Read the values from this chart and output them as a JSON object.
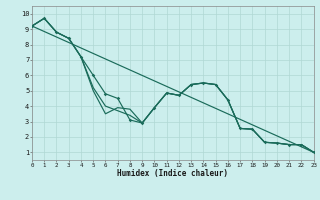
{
  "xlabel": "Humidex (Indice chaleur)",
  "xlim": [
    0,
    23
  ],
  "ylim": [
    0.5,
    10.5
  ],
  "xticks": [
    0,
    1,
    2,
    3,
    4,
    5,
    6,
    7,
    8,
    9,
    10,
    11,
    12,
    13,
    14,
    15,
    16,
    17,
    18,
    19,
    20,
    21,
    22,
    23
  ],
  "yticks": [
    1,
    2,
    3,
    4,
    5,
    6,
    7,
    8,
    9,
    10
  ],
  "bg_color": "#cceeed",
  "grid_color": "#b0d8d4",
  "line_color": "#1a6b5a",
  "series": [
    {
      "x": [
        0,
        1,
        2,
        3,
        4,
        5,
        6,
        7,
        8,
        9,
        10,
        11,
        12,
        13,
        14,
        15,
        16,
        17,
        18,
        19,
        20,
        21,
        22,
        23
      ],
      "y": [
        9.2,
        9.7,
        8.8,
        8.4,
        7.2,
        6.0,
        4.8,
        4.5,
        3.1,
        2.9,
        3.9,
        4.85,
        4.7,
        5.4,
        5.5,
        5.4,
        4.4,
        2.55,
        2.5,
        1.65,
        1.6,
        1.5,
        1.5,
        1.0
      ],
      "marker": true,
      "lw": 0.85
    },
    {
      "x": [
        0,
        1,
        2,
        3,
        4,
        5,
        6,
        7,
        8,
        9,
        10,
        11,
        12,
        13,
        14,
        15,
        16,
        17,
        18,
        19,
        20,
        21,
        22,
        23
      ],
      "y": [
        9.2,
        9.7,
        8.8,
        8.4,
        7.2,
        5.0,
        3.5,
        3.9,
        3.8,
        2.9,
        3.9,
        4.85,
        4.7,
        5.4,
        5.5,
        5.4,
        4.4,
        2.55,
        2.5,
        1.65,
        1.6,
        1.5,
        1.5,
        1.0
      ],
      "marker": false,
      "lw": 0.85
    },
    {
      "x": [
        0,
        23
      ],
      "y": [
        9.2,
        1.0
      ],
      "marker": false,
      "lw": 0.85
    },
    {
      "x": [
        0,
        1,
        2,
        3,
        4,
        5,
        6,
        7,
        8,
        9,
        10,
        11,
        12,
        13,
        14,
        15,
        16,
        17,
        18,
        19,
        20,
        21,
        22,
        23
      ],
      "y": [
        9.2,
        9.7,
        8.8,
        8.4,
        7.2,
        5.2,
        4.0,
        3.7,
        3.4,
        2.9,
        3.9,
        4.85,
        4.7,
        5.4,
        5.5,
        5.4,
        4.4,
        2.55,
        2.5,
        1.65,
        1.6,
        1.5,
        1.5,
        1.0
      ],
      "marker": false,
      "lw": 0.85
    }
  ]
}
